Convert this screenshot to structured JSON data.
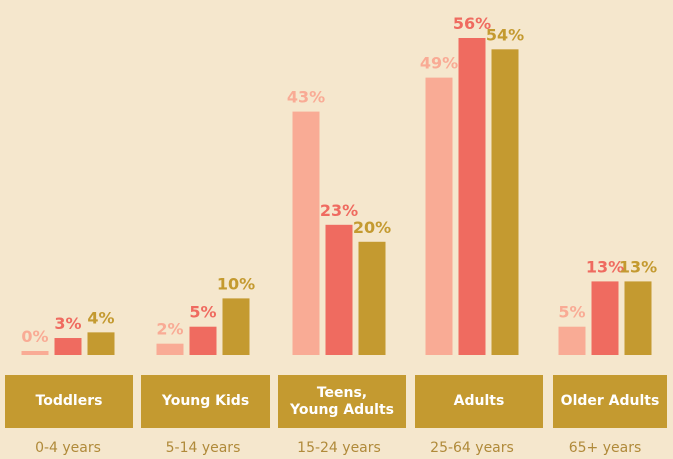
{
  "chart_data": {
    "type": "bar",
    "categories": [
      "Toddlers",
      "Young Kids",
      "Teens,\nYoung Adults",
      "Adults",
      "Older Adults"
    ],
    "subtitles": [
      "0-4 years",
      "5-14 years",
      "15-24 years",
      "25-64 years",
      "65+ years"
    ],
    "series": [
      {
        "color": "#f9ab95",
        "values": [
          0,
          2,
          43,
          49,
          5
        ],
        "value_labels": [
          "0%",
          "2%",
          "43%",
          "49%",
          "5%"
        ]
      },
      {
        "color": "#ef6b60",
        "values": [
          3,
          5,
          23,
          56,
          13
        ],
        "value_labels": [
          "3%",
          "5%",
          "23%",
          "56%",
          "13%"
        ]
      },
      {
        "color": "#c49a30",
        "values": [
          4,
          10,
          20,
          54,
          13
        ],
        "value_labels": [
          "4%",
          "10%",
          "20%",
          "54%",
          "13%"
        ]
      }
    ]
  }
}
